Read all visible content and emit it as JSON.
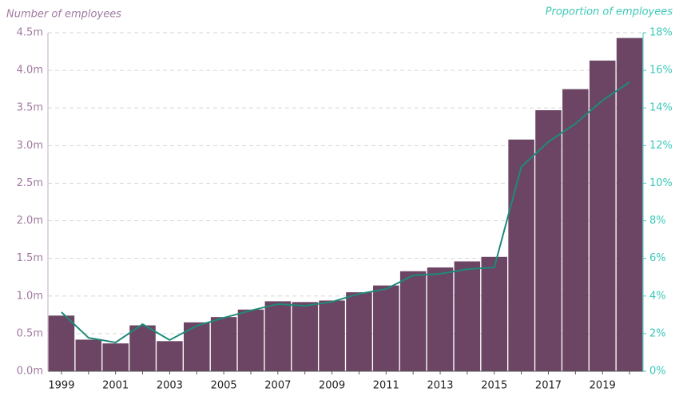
{
  "chart_data": {
    "type": "bar_line",
    "y_label": "Number of employees",
    "y2_label": "Proportion of employees",
    "categories": [
      "1999",
      null,
      "2001",
      null,
      "2003",
      null,
      "2005",
      null,
      "2007",
      null,
      "2009",
      null,
      "2011",
      null,
      "2013",
      null,
      "2015",
      null,
      "2017",
      null,
      "2019",
      null
    ],
    "series": [
      {
        "type": "bar",
        "color": "#6b4563",
        "values": [
          740000,
          420000,
          370000,
          610000,
          400000,
          650000,
          720000,
          820000,
          930000,
          920000,
          940000,
          1050000,
          1140000,
          1330000,
          1380000,
          1460000,
          1520000,
          3080000,
          3470000,
          3750000,
          4130000,
          4430000
        ]
      },
      {
        "type": "line",
        "axis": "y2",
        "color": "#1f8a7a",
        "values": [
          3.14,
          1.78,
          1.53,
          2.5,
          1.66,
          2.42,
          2.84,
          3.23,
          3.57,
          3.48,
          3.69,
          4.12,
          4.37,
          5.1,
          5.18,
          5.43,
          5.52,
          10.87,
          12.2,
          13.16,
          14.4,
          15.37
        ]
      }
    ],
    "ylim": [
      0,
      4500000
    ],
    "yticks": [
      {
        "value": 0,
        "label": "0.0m"
      },
      {
        "value": 500000,
        "label": "0.5m"
      },
      {
        "value": 1000000,
        "label": "1.0m"
      },
      {
        "value": 1500000,
        "label": "1.5m"
      },
      {
        "value": 2000000,
        "label": "2.0m"
      },
      {
        "value": 2500000,
        "label": "2.5m"
      },
      {
        "value": 3000000,
        "label": "3.0m"
      },
      {
        "value": 3500000,
        "label": "3.5m"
      },
      {
        "value": 4000000,
        "label": "4.0m"
      },
      {
        "value": 4500000,
        "label": "4.5m"
      }
    ],
    "y2lim": [
      0,
      18
    ],
    "y2ticks": [
      {
        "value": 0,
        "label": "0%"
      },
      {
        "value": 2,
        "label": "2%"
      },
      {
        "value": 4,
        "label": "4%"
      },
      {
        "value": 6,
        "label": "6%"
      },
      {
        "value": 8,
        "label": "8%"
      },
      {
        "value": 10,
        "label": "10%"
      },
      {
        "value": 12,
        "label": "12%"
      },
      {
        "value": 14,
        "label": "14%"
      },
      {
        "value": 16,
        "label": "16%"
      },
      {
        "value": 18,
        "label": "18%"
      }
    ],
    "grid": true
  }
}
